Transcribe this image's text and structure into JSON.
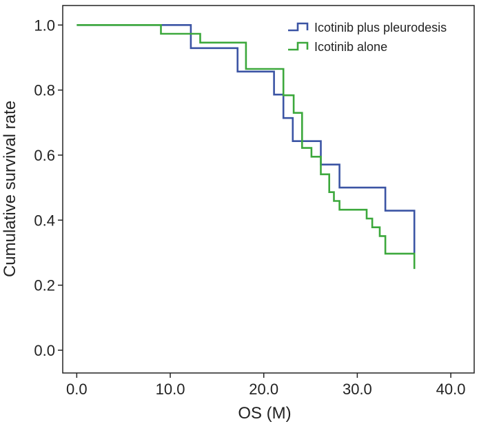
{
  "chart_data": {
    "type": "line",
    "step": "post",
    "title": "",
    "xlabel": "OS (M)",
    "ylabel": "Cumulative survival rate",
    "xlim": [
      -1.5,
      42.5
    ],
    "ylim": [
      -0.07,
      1.06
    ],
    "xticks": [
      0,
      10,
      20,
      30,
      40
    ],
    "xtick_labels": [
      "0.0",
      "10.0",
      "20.0",
      "30.0",
      "40.0"
    ],
    "yticks": [
      0,
      0.2,
      0.4,
      0.6,
      0.8,
      1.0
    ],
    "ytick_labels": [
      "0.0",
      "0.2",
      "0.4",
      "0.6",
      "0.8",
      "1.0"
    ],
    "grid": false,
    "legend_position": "top-right",
    "series": [
      {
        "name": "Icotinib plus pleurodesis",
        "color": "#3b54a4",
        "x": [
          0,
          12.2,
          17.2,
          21.1,
          22.1,
          23.1,
          26.1,
          28.1,
          33.0,
          36.1
        ],
        "y": [
          1.0,
          0.929,
          0.857,
          0.786,
          0.714,
          0.643,
          0.571,
          0.5,
          0.429,
          0.295
        ]
      },
      {
        "name": "Icotinib alone",
        "color": "#3ca83c",
        "x": [
          0,
          9.0,
          13.2,
          18.1,
          22.1,
          23.2,
          24.1,
          25.1,
          26.1,
          27.0,
          27.5,
          28.1,
          31.0,
          31.6,
          32.4,
          33.0,
          36.1
        ],
        "y": [
          1.0,
          0.973,
          0.946,
          0.865,
          0.784,
          0.73,
          0.622,
          0.595,
          0.541,
          0.486,
          0.459,
          0.432,
          0.405,
          0.378,
          0.351,
          0.297,
          0.25
        ]
      }
    ]
  }
}
